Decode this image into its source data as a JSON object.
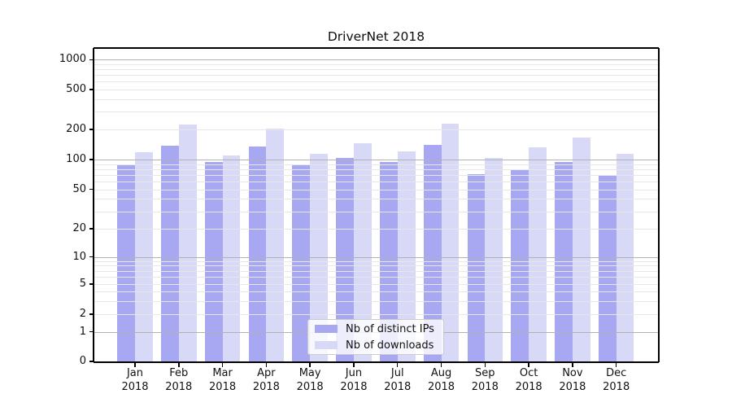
{
  "chart_data": {
    "type": "bar",
    "title": "DriverNet 2018",
    "categories": [
      "Jan 2018",
      "Feb 2018",
      "Mar 2018",
      "Apr 2018",
      "May 2018",
      "Jun 2018",
      "Jul 2018",
      "Aug 2018",
      "Sep 2018",
      "Oct 2018",
      "Nov 2018",
      "Dec 2018"
    ],
    "series": [
      {
        "name": "Nb of distinct IPs",
        "color": "#a7a7f2",
        "values": [
          90,
          137,
          95,
          136,
          89,
          103,
          95,
          140,
          71,
          80,
          95,
          70
        ]
      },
      {
        "name": "Nb of downloads",
        "color": "#d8d8f7",
        "values": [
          118,
          222,
          110,
          204,
          113,
          146,
          120,
          227,
          103,
          132,
          166,
          115
        ]
      }
    ],
    "xlabel": "",
    "ylabel": "",
    "yscale": "symlog",
    "yticks": [
      0,
      1,
      2,
      5,
      10,
      20,
      50,
      100,
      200,
      500,
      1000
    ],
    "ytick_labels": [
      "0",
      "1",
      "2",
      "5",
      "10",
      "20",
      "50",
      "100",
      "200",
      "500",
      "1000"
    ],
    "ylim": [
      0,
      1300
    ],
    "grid": true,
    "legend": {
      "position": "bottom-center-inside",
      "entries": [
        "Nb of distinct IPs",
        "Nb of downloads"
      ]
    }
  },
  "colors": {
    "background": "#ffffff",
    "series_distinct_ips": "#a7a7f2",
    "series_downloads": "#d8d8f7",
    "grid_major": "#b2b2b2",
    "grid_minor": "#e7e7e7",
    "axis": "#000000",
    "legend_border": "#cccccc",
    "text": "#111111"
  }
}
